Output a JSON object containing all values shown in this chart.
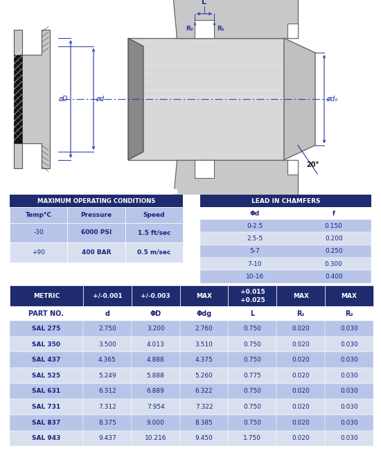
{
  "bg_color": "#ffffff",
  "dark_blue": "#1e2b6e",
  "header_blue": "#1e2b6e",
  "light_blue": "#b8c4e8",
  "lighter_blue": "#d8e0f0",
  "seal_gray": "#c8c8c8",
  "seal_dark": "#909090",
  "seal_darker": "#707070",
  "seal_light": "#e0e0e0",
  "dim_color": "#2233aa",
  "max_conditions": {
    "title": "MAXIMUM OPERATING CONDITIONS",
    "headers": [
      "Temp°C",
      "Pressure",
      "Speed"
    ],
    "rows": [
      [
        "-30",
        "6000 PSI",
        "1.5 ft/sec"
      ],
      [
        "+90",
        "400 BAR",
        "0.5 m/sec"
      ]
    ]
  },
  "chamfers": {
    "title": "LEAD IN CHAMFERS",
    "headers": [
      "Φd",
      "f"
    ],
    "rows": [
      [
        "0-2.5",
        "0.150"
      ],
      [
        "2.5-5",
        "0.200"
      ],
      [
        "5-7",
        "0.250"
      ],
      [
        "7-10",
        "0.300"
      ],
      [
        "10-16",
        "0.400"
      ]
    ]
  },
  "metric_table": {
    "header1": [
      "METRIC",
      "+/-0.001",
      "+/-0.003",
      "MAX",
      "+0.015\n+0.025",
      "MAX",
      "MAX"
    ],
    "header2": [
      "PART NO.",
      "d",
      "ΦD",
      "Φdg",
      "L",
      "R₁",
      "R₂"
    ],
    "rows": [
      [
        "SAL 275",
        "2.750",
        "3.200",
        "2.760",
        "0.750",
        "0.020",
        "0.030"
      ],
      [
        "SAL 350",
        "3.500",
        "4.013",
        "3.510",
        "0.750",
        "0.020",
        "0.030"
      ],
      [
        "SAL 437",
        "4.365",
        "4.888",
        "4.375",
        "0.750",
        "0.020",
        "0.030"
      ],
      [
        "SAL 525",
        "5.249",
        "5.888",
        "5.260",
        "0.775",
        "0.020",
        "0.030"
      ],
      [
        "SAL 631",
        "6.312",
        "6.889",
        "6.322",
        "0.750",
        "0.020",
        "0.030"
      ],
      [
        "SAL 731",
        "7.312",
        "7.954",
        "7.322",
        "0.750",
        "0.020",
        "0.030"
      ],
      [
        "SAL 837",
        "8.375",
        "9.000",
        "8.385",
        "0.750",
        "0.020",
        "0.030"
      ],
      [
        "SAL 943",
        "9.437",
        "10.216",
        "9.450",
        "1.750",
        "0.020",
        "0.030"
      ]
    ]
  }
}
